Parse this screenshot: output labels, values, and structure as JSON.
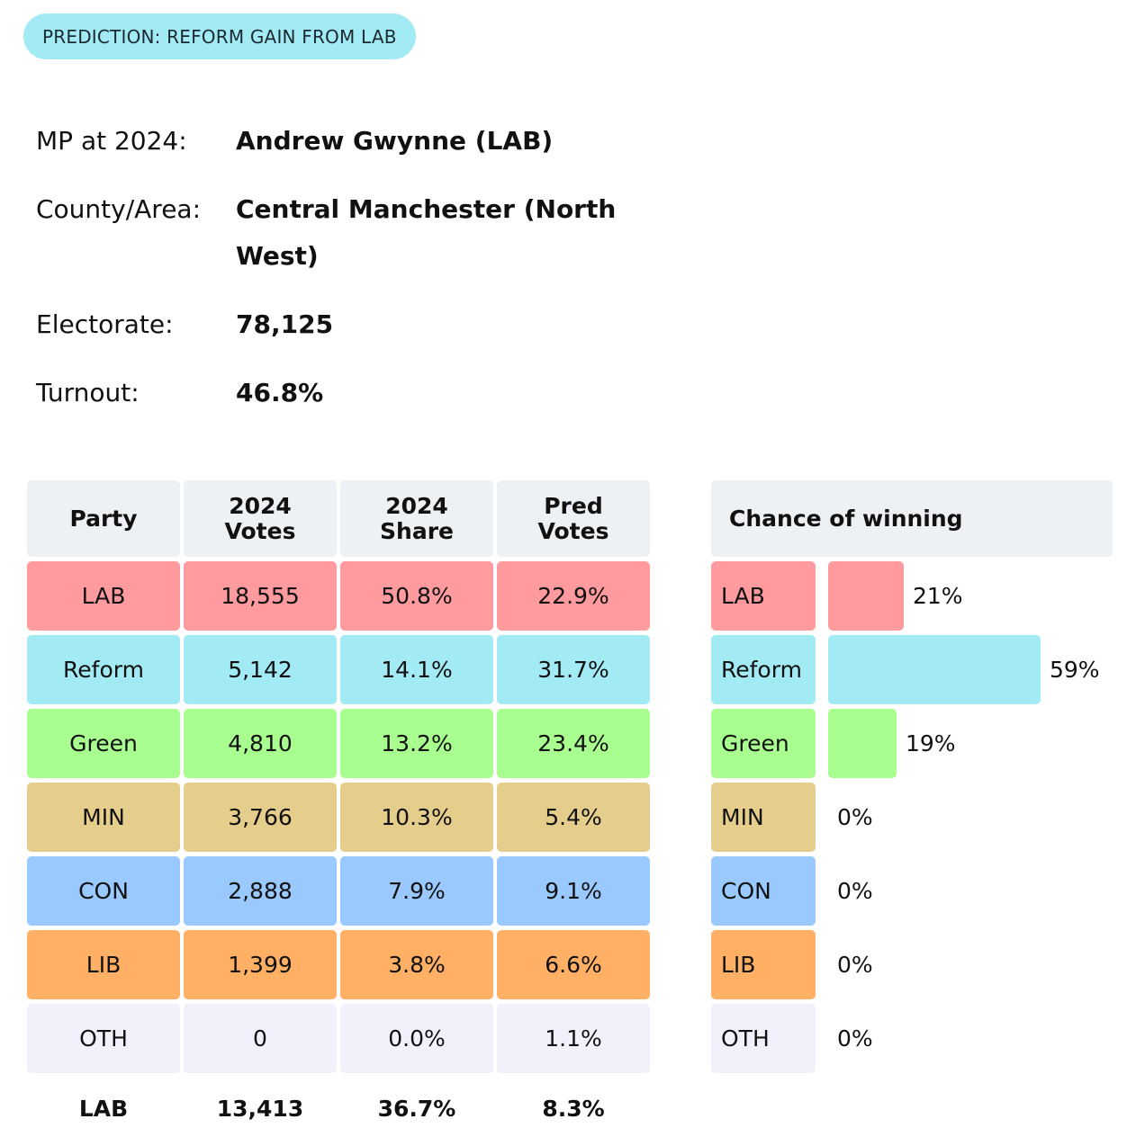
{
  "prediction_badge": "PREDICTION: REFORM GAIN FROM LAB",
  "info": {
    "mp_label": "MP at 2024:",
    "mp_value": "Andrew Gwynne  (LAB)",
    "area_label": "County/Area:",
    "area_value": "Central Manchester (North West)",
    "electorate_label": "Electorate:",
    "electorate_value": "78,125",
    "turnout_label": "Turnout:",
    "turnout_value": "46.8%"
  },
  "table": {
    "headers": {
      "party": "Party",
      "votes_2024_line1": "2024",
      "votes_2024_line2": "Votes",
      "share_2024_line1": "2024",
      "share_2024_line2": "Share",
      "pred_line1": "Pred",
      "pred_line2": "Votes"
    },
    "rows": [
      {
        "party": "LAB",
        "votes": "18,555",
        "share": "50.8%",
        "pred": "22.9%",
        "color": "#ff9b9e"
      },
      {
        "party": "Reform",
        "votes": "5,142",
        "share": "14.1%",
        "pred": "31.7%",
        "color": "#a2eaf4"
      },
      {
        "party": "Green",
        "votes": "4,810",
        "share": "13.2%",
        "pred": "23.4%",
        "color": "#a9fe90"
      },
      {
        "party": "MIN",
        "votes": "3,766",
        "share": "10.3%",
        "pred": "5.4%",
        "color": "#e5cd8b"
      },
      {
        "party": "CON",
        "votes": "2,888",
        "share": "7.9%",
        "pred": "9.1%",
        "color": "#99c9ff"
      },
      {
        "party": "LIB",
        "votes": "1,399",
        "share": "3.8%",
        "pred": "6.6%",
        "color": "#ffb065"
      },
      {
        "party": "OTH",
        "votes": "0",
        "share": "0.0%",
        "pred": "1.1%",
        "color": "#f3f0fc"
      }
    ],
    "majority": {
      "party": "LAB",
      "votes": "13,413",
      "share": "36.7%",
      "pred": "8.3%"
    }
  },
  "chance": {
    "header": "Chance of winning",
    "rows": [
      {
        "party": "LAB",
        "label": "21%",
        "value": 21
      },
      {
        "party": "Reform",
        "label": "59%",
        "value": 59
      },
      {
        "party": "Green",
        "label": "19%",
        "value": 19
      },
      {
        "party": "MIN",
        "label": "0%",
        "value": 0
      },
      {
        "party": "CON",
        "label": "0%",
        "value": 0
      },
      {
        "party": "LIB",
        "label": "0%",
        "value": 0
      },
      {
        "party": "OTH",
        "label": "0%",
        "value": 0
      }
    ]
  }
}
